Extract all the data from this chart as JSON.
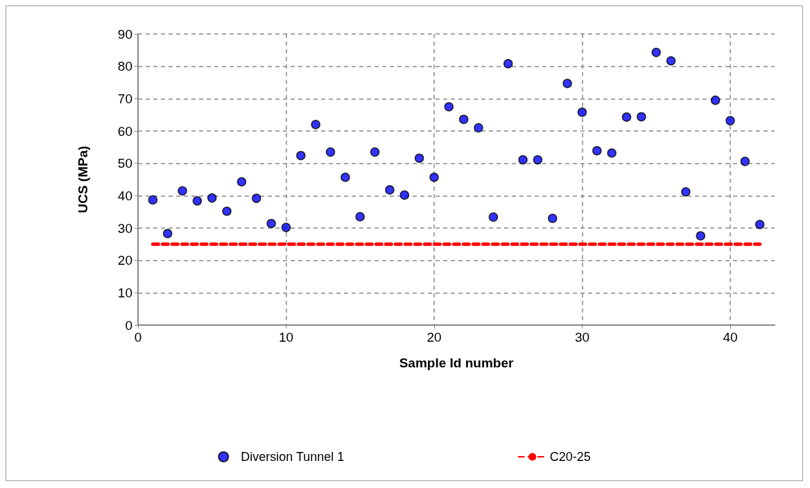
{
  "chart_data": {
    "type": "scatter",
    "xlabel": "Sample Id number",
    "ylabel": "UCS (MPa)",
    "xlim": [
      0,
      43
    ],
    "xticks": [
      0,
      10,
      20,
      30,
      40
    ],
    "ylim": [
      0,
      90
    ],
    "yticks": [
      0,
      10,
      20,
      30,
      40,
      50,
      60,
      70,
      80,
      90
    ],
    "grid": true,
    "legend": "bottom",
    "marker": "circle",
    "x": [
      1,
      2,
      3,
      4,
      5,
      6,
      7,
      8,
      9,
      10,
      11,
      12,
      13,
      14,
      15,
      16,
      17,
      18,
      19,
      20,
      21,
      22,
      23,
      24,
      25,
      26,
      27,
      28,
      29,
      30,
      31,
      32,
      33,
      34,
      35,
      36,
      37,
      38,
      39,
      40,
      41,
      42
    ],
    "series": [
      {
        "name": "Diversion Tunnel 1",
        "color": "#0000ff",
        "values": [
          38.7,
          28.3,
          41.5,
          38.4,
          39.3,
          35.2,
          44.3,
          39.2,
          31.4,
          30.2,
          52.4,
          62.0,
          53.5,
          45.7,
          33.5,
          53.5,
          41.8,
          40.2,
          51.6,
          45.7,
          67.5,
          63.6,
          61.0,
          33.4,
          80.8,
          51.1,
          51.1,
          33.0,
          74.7,
          65.8,
          53.9,
          53.2,
          64.3,
          64.4,
          84.3,
          81.7,
          41.2,
          27.6,
          69.5,
          63.2,
          50.6,
          31.1
        ]
      },
      {
        "name": "C20-25",
        "type": "line",
        "color": "#ff0000",
        "marker": "none",
        "line_style": "dashed",
        "x": [
          1,
          42
        ],
        "values": [
          25,
          25
        ]
      }
    ]
  }
}
